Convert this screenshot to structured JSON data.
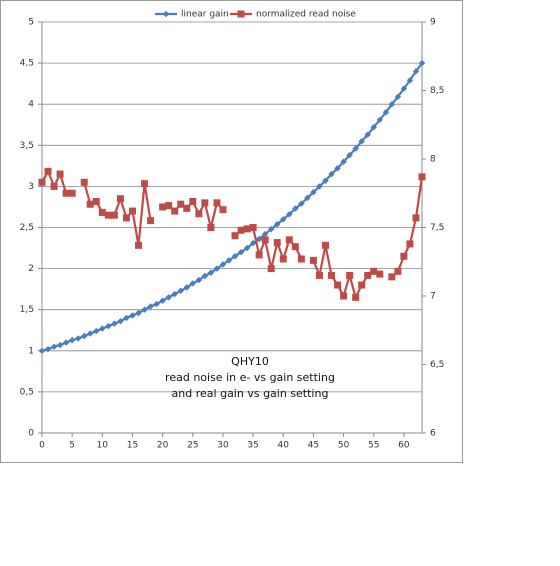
{
  "chart_data": {
    "type": "line",
    "annotations": [
      "QHY10",
      "read noise in e- vs gain setting",
      "and real gain vs gain setting"
    ],
    "x": [
      0,
      1,
      2,
      3,
      4,
      5,
      6,
      7,
      8,
      9,
      10,
      11,
      12,
      13,
      14,
      15,
      16,
      17,
      18,
      19,
      20,
      21,
      22,
      23,
      24,
      25,
      26,
      27,
      28,
      29,
      30,
      31,
      32,
      33,
      34,
      35,
      36,
      37,
      38,
      39,
      40,
      41,
      42,
      43,
      44,
      45,
      46,
      47,
      48,
      49,
      50,
      51,
      52,
      53,
      54,
      55,
      56,
      57,
      58,
      59,
      60,
      61,
      62,
      63
    ],
    "xlim": [
      0,
      63
    ],
    "xticks": [
      0,
      5,
      10,
      15,
      20,
      25,
      30,
      35,
      40,
      45,
      50,
      55,
      60
    ],
    "ylim": [
      0,
      5
    ],
    "yticks": [
      0,
      {
        "value": 0.5,
        "label": "0,5"
      },
      1,
      {
        "value": 1.5,
        "label": "1,5"
      },
      2,
      {
        "value": 2.5,
        "label": "2,5"
      },
      3,
      {
        "value": 3.5,
        "label": "3,5"
      },
      4,
      {
        "value": 4.5,
        "label": "4,5"
      },
      5
    ],
    "y2lim": [
      6,
      9
    ],
    "y2ticks": [
      6,
      {
        "value": 6.5,
        "label": "6,5"
      },
      7,
      {
        "value": 7.5,
        "label": "7,5"
      },
      8,
      {
        "value": 8.5,
        "label": "8,5"
      },
      9
    ],
    "grid": true,
    "legend": "top",
    "series": [
      {
        "name": "linear gain",
        "color": "#4a7ebb",
        "marker": "diamond",
        "values": [
          1.0,
          1.02,
          1.05,
          1.07,
          1.1,
          1.13,
          1.15,
          1.18,
          1.21,
          1.24,
          1.27,
          1.3,
          1.33,
          1.36,
          1.4,
          1.43,
          1.46,
          1.5,
          1.54,
          1.57,
          1.61,
          1.65,
          1.69,
          1.73,
          1.77,
          1.82,
          1.86,
          1.91,
          1.95,
          2.0,
          2.05,
          2.1,
          2.15,
          2.2,
          2.25,
          2.31,
          2.36,
          2.42,
          2.48,
          2.54,
          2.6,
          2.66,
          2.73,
          2.79,
          2.86,
          2.93,
          3.0,
          3.07,
          3.15,
          3.22,
          3.3,
          3.38,
          3.46,
          3.55,
          3.63,
          3.72,
          3.81,
          3.9,
          4.0,
          4.09,
          4.19,
          4.29,
          4.4,
          4.5
        ]
      },
      {
        "name": "normalized read noise",
        "color": "#be4b48",
        "marker": "square",
        "axis": "y2",
        "values": [
          7.83,
          7.91,
          7.8,
          7.89,
          7.75,
          7.75,
          null,
          7.83,
          7.67,
          7.69,
          7.61,
          7.59,
          7.59,
          7.71,
          7.57,
          7.62,
          7.37,
          7.82,
          7.55,
          null,
          7.65,
          7.66,
          7.62,
          7.67,
          7.64,
          7.69,
          7.6,
          7.68,
          7.5,
          7.68,
          7.63,
          null,
          7.44,
          7.48,
          7.49,
          7.5,
          7.3,
          7.41,
          7.2,
          7.39,
          7.27,
          7.41,
          7.36,
          7.27,
          null,
          7.26,
          7.15,
          7.37,
          7.15,
          7.08,
          7.0,
          7.15,
          6.99,
          7.08,
          7.15,
          7.18,
          7.16,
          null,
          7.14,
          7.18,
          7.29,
          7.38,
          7.57,
          7.87
        ]
      }
    ]
  }
}
